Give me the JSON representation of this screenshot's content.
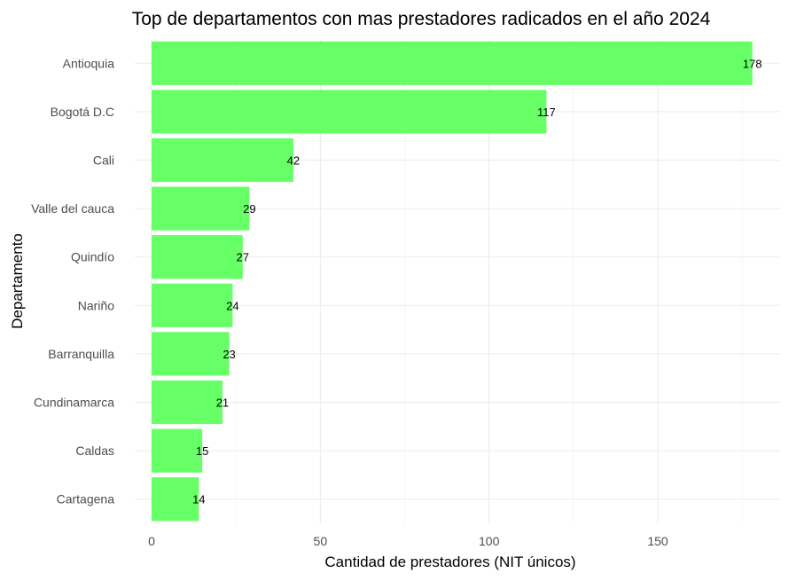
{
  "chart_data": {
    "type": "bar",
    "orientation": "horizontal",
    "title": "Top de departamentos con mas prestadores radicados en el año 2024",
    "xlabel": "Cantidad de prestadores (NIT únicos)",
    "ylabel": "Departamento",
    "categories": [
      "Antioquia",
      "Bogotá D.C",
      "Cali",
      "Valle del cauca",
      "Quindío",
      "Nariño",
      "Barranquilla",
      "Cundinamarca",
      "Caldas",
      "Cartagena"
    ],
    "values": [
      178,
      117,
      42,
      29,
      27,
      24,
      23,
      21,
      15,
      14
    ],
    "x_ticks": [
      0,
      50,
      100,
      150
    ],
    "xlim": [
      0,
      185
    ],
    "grid": true,
    "legend": "none",
    "bar_color": "#66ff66"
  }
}
